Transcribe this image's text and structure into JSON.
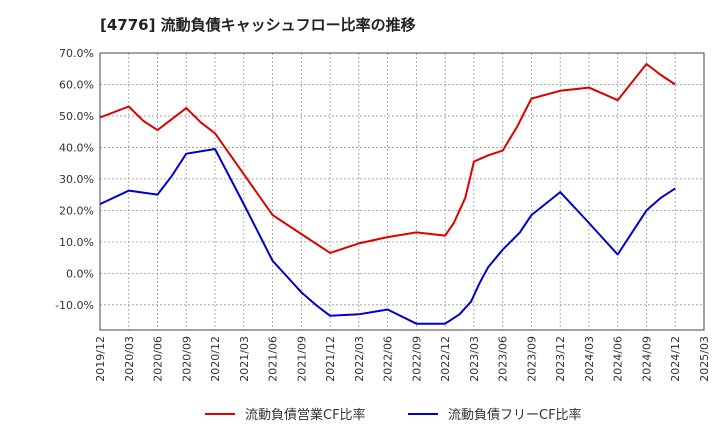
{
  "chart_data": {
    "type": "line",
    "title": "[4776]  流動負債キャッシュフロー比率の推移",
    "xlabel": "",
    "ylabel": "",
    "ylim": [
      -18,
      70
    ],
    "y_ticks": [
      70,
      60,
      50,
      40,
      30,
      20,
      10,
      0,
      -10
    ],
    "y_tick_labels": [
      "70.0%",
      "60.0%",
      "50.0%",
      "40.0%",
      "30.0%",
      "20.0%",
      "10.0%",
      "0.0%",
      "-10.0%"
    ],
    "x_tick_labels": [
      "2019/12",
      "2020/03",
      "2020/06",
      "2020/09",
      "2020/12",
      "2021/03",
      "2021/06",
      "2021/09",
      "2021/12",
      "2022/03",
      "2022/06",
      "2022/09",
      "2022/12",
      "2023/03",
      "2023/06",
      "2023/09",
      "2023/12",
      "2024/03",
      "2024/06",
      "2024/09",
      "2024/12",
      "2025/03"
    ],
    "grid": true,
    "legend_position": "bottom",
    "series": [
      {
        "name": "流動負債営業CF比率",
        "color": "#dd0000",
        "points": [
          [
            0,
            49.5
          ],
          [
            1,
            53
          ],
          [
            1.5,
            48.5
          ],
          [
            2,
            45.5
          ],
          [
            2.5,
            49
          ],
          [
            3,
            52.5
          ],
          [
            3.5,
            48
          ],
          [
            4,
            44.5
          ],
          [
            5,
            31.5
          ],
          [
            6,
            18.5
          ],
          [
            7,
            12.5
          ],
          [
            8,
            6.5
          ],
          [
            9,
            9.5
          ],
          [
            10,
            11.5
          ],
          [
            11,
            13
          ],
          [
            12,
            12
          ],
          [
            12.3,
            16
          ],
          [
            12.7,
            24
          ],
          [
            13,
            35.5
          ],
          [
            13.5,
            37.5
          ],
          [
            14,
            39
          ],
          [
            14.5,
            46.5
          ],
          [
            15,
            55.5
          ],
          [
            16,
            58
          ],
          [
            17,
            59
          ],
          [
            18,
            55
          ],
          [
            19,
            66.5
          ],
          [
            19.5,
            63
          ],
          [
            20,
            60
          ]
        ]
      },
      {
        "name": "流動負債フリーCF比率",
        "color": "#0000cc",
        "points": [
          [
            0,
            22
          ],
          [
            1,
            26.3
          ],
          [
            2,
            25
          ],
          [
            2.5,
            31
          ],
          [
            3,
            38
          ],
          [
            4,
            39.5
          ],
          [
            5,
            22
          ],
          [
            6,
            4
          ],
          [
            6.5,
            -1
          ],
          [
            7,
            -6
          ],
          [
            7.5,
            -10
          ],
          [
            8,
            -13.5
          ],
          [
            9,
            -13
          ],
          [
            10,
            -11.5
          ],
          [
            11,
            -16
          ],
          [
            12,
            -16
          ],
          [
            12.5,
            -13
          ],
          [
            12.9,
            -9
          ],
          [
            13.2,
            -3
          ],
          [
            13.5,
            2
          ],
          [
            14,
            7.5
          ],
          [
            14.6,
            13
          ],
          [
            15,
            18.5
          ],
          [
            16,
            25.8
          ],
          [
            17,
            16
          ],
          [
            18,
            6
          ],
          [
            19,
            20
          ],
          [
            19.5,
            24
          ],
          [
            20,
            27
          ]
        ]
      }
    ]
  }
}
